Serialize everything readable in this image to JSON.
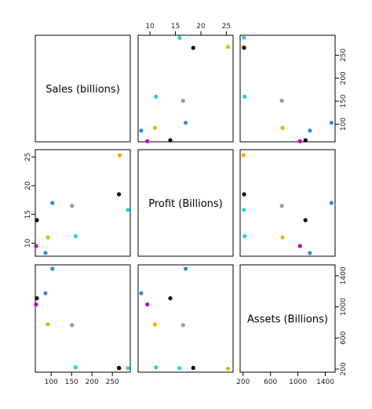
{
  "chart_data": {
    "type": "scatter",
    "variables": [
      "Sales (billions)",
      "Profit (Billions)",
      "Assets (Billions)"
    ],
    "ranges": {
      "sales": [
        65,
        290
      ],
      "profit": [
        8,
        26
      ],
      "assets": [
        180,
        1520
      ]
    },
    "ticks": {
      "sales": [
        100,
        150,
        200,
        250
      ],
      "profit": [
        10,
        15,
        20,
        25
      ],
      "assets": [
        200,
        600,
        1000,
        1400
      ]
    },
    "tick_labels": {
      "sales": [
        "100",
        "150",
        "200",
        "250"
      ],
      "profit": [
        "10",
        "15",
        "20",
        "25"
      ],
      "assets": [
        "200",
        "600",
        "1000",
        "1400"
      ]
    },
    "points": [
      {
        "sales": 63,
        "profit": 9.5,
        "assets": 1030,
        "color": "#c000c0"
      },
      {
        "sales": 65,
        "profit": 14,
        "assets": 1110,
        "color": "#000000"
      },
      {
        "sales": 86,
        "profit": 8.3,
        "assets": 1175,
        "color": "#2e8bd4"
      },
      {
        "sales": 92,
        "profit": 11,
        "assets": 775,
        "color": "#f0b000"
      },
      {
        "sales": 103,
        "profit": 17,
        "assets": 1490,
        "color": "#2e8bd4"
      },
      {
        "sales": 151,
        "profit": 16.5,
        "assets": 765,
        "color": "#999999"
      },
      {
        "sales": 160,
        "profit": 11.2,
        "assets": 222,
        "color": "#22d3e0"
      },
      {
        "sales": 268,
        "profit": 25.3,
        "assets": 206,
        "color": "#f0b000"
      },
      {
        "sales": 266,
        "profit": 18.5,
        "assets": 215,
        "color": "#000000"
      },
      {
        "sales": 288,
        "profit": 15.8,
        "assets": 212,
        "color": "#22d3e0"
      }
    ]
  }
}
